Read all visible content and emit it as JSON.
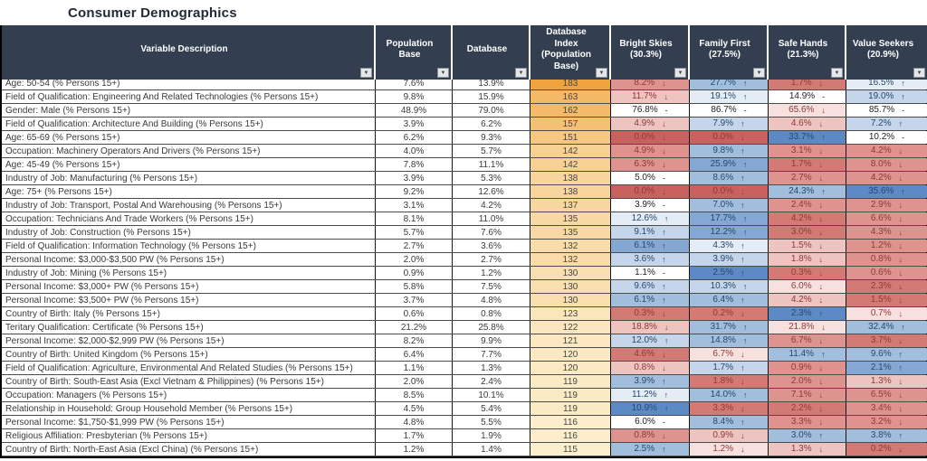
{
  "title": "Consumer Demographics",
  "filter_icon": "▼",
  "columns": [
    {
      "label": "Variable Description"
    },
    {
      "label": "Population Base"
    },
    {
      "label": "Database"
    },
    {
      "label": "Database Index (Population Base)"
    },
    {
      "label": "Bright Skies (30.3%)"
    },
    {
      "label": "Family First (27.5%)"
    },
    {
      "label": "Safe Hands (21.3%)"
    },
    {
      "label": "Value Seekers (20.9%)"
    }
  ],
  "heat": {
    "min_index": 115,
    "max_index": 183,
    "min_color": "#FCEFCE",
    "max_color": "#EFA33C"
  },
  "palette": {
    "r5": "#C9625E",
    "r4": "#D37A75",
    "r3": "#DE938F",
    "r2": "#EDC4C0",
    "r1": "#F6E1DF",
    "w": "#FFFFFF",
    "b1": "#E4ECF6",
    "b2": "#C5D6EA",
    "b3": "#A2BEDD",
    "b4": "#84A8D3",
    "b5": "#5D8AC4"
  },
  "text_colors": {
    "red": "#8C3A36",
    "blue": "#27486E",
    "neutral": "#222222"
  },
  "rows": [
    {
      "desc": "Age: 50-54 (% Persons 15+)",
      "pop": "7.6%",
      "db": "13.9%",
      "idx": 183,
      "segments": [
        {
          "val": "8.2%",
          "dir": "↓",
          "tone": "r3"
        },
        {
          "val": "27.7%",
          "dir": "↑",
          "tone": "b3"
        },
        {
          "val": "1.7%",
          "dir": "↓",
          "tone": "r4"
        },
        {
          "val": "16.5%",
          "dir": "↑",
          "tone": "b1"
        }
      ]
    },
    {
      "desc": "Field of Qualification: Engineering And Related Technologies (% Persons 15+)",
      "pop": "9.8%",
      "db": "15.9%",
      "idx": 163,
      "segments": [
        {
          "val": "11.7%",
          "dir": "↓",
          "tone": "r2"
        },
        {
          "val": "19.1%",
          "dir": "↑",
          "tone": "b1"
        },
        {
          "val": "14.9%",
          "dir": "-",
          "tone": "w"
        },
        {
          "val": "19.0%",
          "dir": "↑",
          "tone": "b2"
        }
      ]
    },
    {
      "desc": "Gender: Male (% Persons 15+)",
      "pop": "48.9%",
      "db": "79.0%",
      "idx": 162,
      "segments": [
        {
          "val": "76.8%",
          "dir": "-",
          "tone": "w"
        },
        {
          "val": "86.7%",
          "dir": "-",
          "tone": "w"
        },
        {
          "val": "65.6%",
          "dir": "↓",
          "tone": "r1"
        },
        {
          "val": "85.7%",
          "dir": "-",
          "tone": "w"
        }
      ]
    },
    {
      "desc": "Field of Qualification: Architecture And Building (% Persons 15+)",
      "pop": "3.9%",
      "db": "6.2%",
      "idx": 157,
      "segments": [
        {
          "val": "4.9%",
          "dir": "↓",
          "tone": "r2"
        },
        {
          "val": "7.9%",
          "dir": "↑",
          "tone": "b2"
        },
        {
          "val": "4.6%",
          "dir": "↓",
          "tone": "r2"
        },
        {
          "val": "7.2%",
          "dir": "↑",
          "tone": "b2"
        }
      ]
    },
    {
      "desc": "Age: 65-69 (% Persons 15+)",
      "pop": "6.2%",
      "db": "9.3%",
      "idx": 151,
      "segments": [
        {
          "val": "0.0%",
          "dir": "↓",
          "tone": "r5"
        },
        {
          "val": "0.0%",
          "dir": "↓",
          "tone": "r5"
        },
        {
          "val": "33.7%",
          "dir": "↑",
          "tone": "b5"
        },
        {
          "val": "10.2%",
          "dir": "-",
          "tone": "w"
        }
      ]
    },
    {
      "desc": "Occupation: Machinery Operators And Drivers (% Persons 15+)",
      "pop": "4.0%",
      "db": "5.7%",
      "idx": 142,
      "segments": [
        {
          "val": "4.9%",
          "dir": "↓",
          "tone": "r3"
        },
        {
          "val": "9.8%",
          "dir": "↑",
          "tone": "b3"
        },
        {
          "val": "3.1%",
          "dir": "↓",
          "tone": "r3"
        },
        {
          "val": "4.2%",
          "dir": "↓",
          "tone": "r3"
        }
      ]
    },
    {
      "desc": "Age: 45-49 (% Persons 15+)",
      "pop": "7.8%",
      "db": "11.1%",
      "idx": 142,
      "segments": [
        {
          "val": "6.3%",
          "dir": "↓",
          "tone": "r3"
        },
        {
          "val": "25.9%",
          "dir": "↑",
          "tone": "b4"
        },
        {
          "val": "1.7%",
          "dir": "↓",
          "tone": "r4"
        },
        {
          "val": "8.0%",
          "dir": "↓",
          "tone": "r3"
        }
      ]
    },
    {
      "desc": "Industry of Job: Manufacturing (% Persons 15+)",
      "pop": "3.9%",
      "db": "5.3%",
      "idx": 138,
      "segments": [
        {
          "val": "5.0%",
          "dir": "-",
          "tone": "w"
        },
        {
          "val": "8.6%",
          "dir": "↑",
          "tone": "b3"
        },
        {
          "val": "2.7%",
          "dir": "↓",
          "tone": "r3"
        },
        {
          "val": "4.2%",
          "dir": "↓",
          "tone": "r3"
        }
      ]
    },
    {
      "desc": "Age: 75+ (% Persons 15+)",
      "pop": "9.2%",
      "db": "12.6%",
      "idx": 138,
      "segments": [
        {
          "val": "0.0%",
          "dir": "↓",
          "tone": "r5"
        },
        {
          "val": "0.0%",
          "dir": "↓",
          "tone": "r5"
        },
        {
          "val": "24.3%",
          "dir": "↑",
          "tone": "b3"
        },
        {
          "val": "35.6%",
          "dir": "↑",
          "tone": "b5"
        }
      ]
    },
    {
      "desc": "Industry of Job: Transport, Postal And Warehousing (% Persons 15+)",
      "pop": "3.1%",
      "db": "4.2%",
      "idx": 137,
      "segments": [
        {
          "val": "3.9%",
          "dir": "-",
          "tone": "w"
        },
        {
          "val": "7.0%",
          "dir": "↑",
          "tone": "b3"
        },
        {
          "val": "2.4%",
          "dir": "↓",
          "tone": "r3"
        },
        {
          "val": "2.9%",
          "dir": "↓",
          "tone": "r3"
        }
      ]
    },
    {
      "desc": "Occupation: Technicians And Trade Workers (% Persons 15+)",
      "pop": "8.1%",
      "db": "11.0%",
      "idx": 135,
      "segments": [
        {
          "val": "12.6%",
          "dir": "↑",
          "tone": "b1"
        },
        {
          "val": "17.7%",
          "dir": "↑",
          "tone": "b4"
        },
        {
          "val": "4.2%",
          "dir": "↓",
          "tone": "r4"
        },
        {
          "val": "6.6%",
          "dir": "↓",
          "tone": "r3"
        }
      ]
    },
    {
      "desc": "Industry of Job: Construction (% Persons 15+)",
      "pop": "5.7%",
      "db": "7.6%",
      "idx": 135,
      "segments": [
        {
          "val": "9.1%",
          "dir": "↑",
          "tone": "b2"
        },
        {
          "val": "12.2%",
          "dir": "↑",
          "tone": "b4"
        },
        {
          "val": "3.0%",
          "dir": "↓",
          "tone": "r4"
        },
        {
          "val": "4.3%",
          "dir": "↓",
          "tone": "r3"
        }
      ]
    },
    {
      "desc": "Field of Qualification: Information Technology (% Persons 15+)",
      "pop": "2.7%",
      "db": "3.6%",
      "idx": 132,
      "segments": [
        {
          "val": "6.1%",
          "dir": "↑",
          "tone": "b4"
        },
        {
          "val": "4.3%",
          "dir": "↑",
          "tone": "b1"
        },
        {
          "val": "1.5%",
          "dir": "↓",
          "tone": "r2"
        },
        {
          "val": "1.2%",
          "dir": "↓",
          "tone": "r3"
        }
      ]
    },
    {
      "desc": "Personal Income: $3,000-$3,500 PW (% Persons 15+)",
      "pop": "2.0%",
      "db": "2.7%",
      "idx": 132,
      "segments": [
        {
          "val": "3.6%",
          "dir": "↑",
          "tone": "b2"
        },
        {
          "val": "3.9%",
          "dir": "↑",
          "tone": "b2"
        },
        {
          "val": "1.8%",
          "dir": "↓",
          "tone": "r2"
        },
        {
          "val": "0.8%",
          "dir": "↓",
          "tone": "r3"
        }
      ]
    },
    {
      "desc": "Industry of Job: Mining (% Persons 15+)",
      "pop": "0.9%",
      "db": "1.2%",
      "idx": 130,
      "segments": [
        {
          "val": "1.1%",
          "dir": "-",
          "tone": "w"
        },
        {
          "val": "2.5%",
          "dir": "↑",
          "tone": "b5"
        },
        {
          "val": "0.3%",
          "dir": "↓",
          "tone": "r4"
        },
        {
          "val": "0.6%",
          "dir": "↓",
          "tone": "r3"
        }
      ]
    },
    {
      "desc": "Personal Income: $3,000+ PW (% Persons 15+)",
      "pop": "5.8%",
      "db": "7.5%",
      "idx": 130,
      "segments": [
        {
          "val": "9.6%",
          "dir": "↑",
          "tone": "b2"
        },
        {
          "val": "10.3%",
          "dir": "↑",
          "tone": "b2"
        },
        {
          "val": "6.0%",
          "dir": "↓",
          "tone": "r1"
        },
        {
          "val": "2.3%",
          "dir": "↓",
          "tone": "r4"
        }
      ]
    },
    {
      "desc": "Personal Income: $3,500+ PW (% Persons 15+)",
      "pop": "3.7%",
      "db": "4.8%",
      "idx": 130,
      "segments": [
        {
          "val": "6.1%",
          "dir": "↑",
          "tone": "b3"
        },
        {
          "val": "6.4%",
          "dir": "↑",
          "tone": "b3"
        },
        {
          "val": "4.2%",
          "dir": "↓",
          "tone": "r2"
        },
        {
          "val": "1.5%",
          "dir": "↓",
          "tone": "r4"
        }
      ]
    },
    {
      "desc": "Country of Birth: Italy (% Persons 15+)",
      "pop": "0.6%",
      "db": "0.8%",
      "idx": 123,
      "segments": [
        {
          "val": "0.3%",
          "dir": "↓",
          "tone": "r4"
        },
        {
          "val": "0.2%",
          "dir": "↓",
          "tone": "r4"
        },
        {
          "val": "2.3%",
          "dir": "↑",
          "tone": "b5"
        },
        {
          "val": "0.7%",
          "dir": "↓",
          "tone": "r1"
        }
      ]
    },
    {
      "desc": "Teritary Qualification: Certificate (% Persons 15+)",
      "pop": "21.2%",
      "db": "25.8%",
      "idx": 122,
      "segments": [
        {
          "val": "18.8%",
          "dir": "↓",
          "tone": "r2"
        },
        {
          "val": "31.7%",
          "dir": "↑",
          "tone": "b3"
        },
        {
          "val": "21.8%",
          "dir": "↓",
          "tone": "r1"
        },
        {
          "val": "32.4%",
          "dir": "↑",
          "tone": "b3"
        }
      ]
    },
    {
      "desc": "Personal Income: $2,000-$2,999 PW (% Persons 15+)",
      "pop": "8.2%",
      "db": "9.9%",
      "idx": 121,
      "segments": [
        {
          "val": "12.0%",
          "dir": "↑",
          "tone": "b2"
        },
        {
          "val": "14.8%",
          "dir": "↑",
          "tone": "b3"
        },
        {
          "val": "6.7%",
          "dir": "↓",
          "tone": "r3"
        },
        {
          "val": "3.7%",
          "dir": "↓",
          "tone": "r4"
        }
      ]
    },
    {
      "desc": "Country of Birth: United Kingdom (% Persons 15+)",
      "pop": "6.4%",
      "db": "7.7%",
      "idx": 120,
      "segments": [
        {
          "val": "4.6%",
          "dir": "↓",
          "tone": "r4"
        },
        {
          "val": "6.7%",
          "dir": "↓",
          "tone": "r1"
        },
        {
          "val": "11.4%",
          "dir": "↑",
          "tone": "b3"
        },
        {
          "val": "9.6%",
          "dir": "↑",
          "tone": "b3"
        }
      ]
    },
    {
      "desc": "Field of Qualification: Agriculture, Environmental And Related Studies (% Persons 15+)",
      "pop": "1.1%",
      "db": "1.3%",
      "idx": 120,
      "segments": [
        {
          "val": "0.8%",
          "dir": "↓",
          "tone": "r2"
        },
        {
          "val": "1.7%",
          "dir": "↑",
          "tone": "b2"
        },
        {
          "val": "0.9%",
          "dir": "↓",
          "tone": "r3"
        },
        {
          "val": "2.1%",
          "dir": "↑",
          "tone": "b4"
        }
      ]
    },
    {
      "desc": "Country of Birth: South-East Asia (Excl Vietnam & Philippines) (% Persons 15+)",
      "pop": "2.0%",
      "db": "2.4%",
      "idx": 119,
      "segments": [
        {
          "val": "3.9%",
          "dir": "↑",
          "tone": "b3"
        },
        {
          "val": "1.8%",
          "dir": "↓",
          "tone": "r4"
        },
        {
          "val": "2.0%",
          "dir": "↓",
          "tone": "r3"
        },
        {
          "val": "1.3%",
          "dir": "↓",
          "tone": "r2"
        }
      ]
    },
    {
      "desc": "Occupation: Managers (% Persons 15+)",
      "pop": "8.5%",
      "db": "10.1%",
      "idx": 119,
      "segments": [
        {
          "val": "11.2%",
          "dir": "↑",
          "tone": "b1"
        },
        {
          "val": "14.0%",
          "dir": "↑",
          "tone": "b3"
        },
        {
          "val": "7.1%",
          "dir": "↓",
          "tone": "r3"
        },
        {
          "val": "6.5%",
          "dir": "↓",
          "tone": "r3"
        }
      ]
    },
    {
      "desc": "Relationship in Household: Group Household Member (% Persons 15+)",
      "pop": "4.5%",
      "db": "5.4%",
      "idx": 119,
      "segments": [
        {
          "val": "10.9%",
          "dir": "↑",
          "tone": "b5"
        },
        {
          "val": "3.3%",
          "dir": "↓",
          "tone": "r4"
        },
        {
          "val": "2.2%",
          "dir": "↓",
          "tone": "r4"
        },
        {
          "val": "3.4%",
          "dir": "↓",
          "tone": "r3"
        }
      ]
    },
    {
      "desc": "Personal Income: $1,750-$1,999 PW (% Persons 15+)",
      "pop": "4.8%",
      "db": "5.5%",
      "idx": 116,
      "segments": [
        {
          "val": "6.0%",
          "dir": "-",
          "tone": "w"
        },
        {
          "val": "8.4%",
          "dir": "↑",
          "tone": "b3"
        },
        {
          "val": "3.3%",
          "dir": "↓",
          "tone": "r3"
        },
        {
          "val": "3.2%",
          "dir": "↓",
          "tone": "r3"
        }
      ]
    },
    {
      "desc": "Religious Affiliation: Presbyterian (% Persons 15+)",
      "pop": "1.7%",
      "db": "1.9%",
      "idx": 116,
      "segments": [
        {
          "val": "0.8%",
          "dir": "↓",
          "tone": "r3"
        },
        {
          "val": "0.9%",
          "dir": "↓",
          "tone": "r2"
        },
        {
          "val": "3.0%",
          "dir": "↑",
          "tone": "b3"
        },
        {
          "val": "3.8%",
          "dir": "↑",
          "tone": "b3"
        }
      ]
    },
    {
      "desc": "Country of Birth: North-East Asia (Excl China) (% Persons 15+)",
      "pop": "1.2%",
      "db": "1.4%",
      "idx": 115,
      "segments": [
        {
          "val": "2.5%",
          "dir": "↑",
          "tone": "b3"
        },
        {
          "val": "1.2%",
          "dir": "↓",
          "tone": "r1"
        },
        {
          "val": "1.3%",
          "dir": "↓",
          "tone": "r2"
        },
        {
          "val": "0.2%",
          "dir": "↓",
          "tone": "r4"
        }
      ]
    }
  ]
}
